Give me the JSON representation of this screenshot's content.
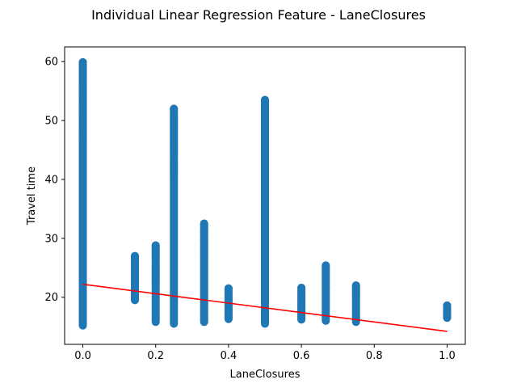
{
  "chart_data": {
    "type": "scatter",
    "title": "Individual Linear Regression Feature - LaneClosures",
    "xlabel": "LaneClosures",
    "ylabel": "Travel time",
    "xlim": [
      -0.05,
      1.05
    ],
    "ylim": [
      12,
      62.5
    ],
    "xticks": [
      0.0,
      0.2,
      0.4,
      0.6,
      0.8,
      1.0
    ],
    "xtick_labels": [
      "0.0",
      "0.2",
      "0.4",
      "0.6",
      "0.8",
      "1.0"
    ],
    "yticks": [
      20,
      30,
      40,
      50,
      60
    ],
    "ytick_labels": [
      "20",
      "30",
      "40",
      "50",
      "60"
    ],
    "grid": false,
    "colors": {
      "points": "#1f77b4",
      "regression": "#ff0000",
      "axes": "#000000"
    },
    "series": [
      {
        "type": "scatter",
        "columns": [
          {
            "x": 0.0,
            "y_min": 15.2,
            "y_max": 59.9
          },
          {
            "x": 0.143,
            "y_min": 19.5,
            "y_max": 27.0
          },
          {
            "x": 0.2,
            "y_min": 15.8,
            "y_max": 28.8
          },
          {
            "x": 0.25,
            "y_min": 15.5,
            "y_max": 52.0
          },
          {
            "x": 0.333,
            "y_min": 15.8,
            "y_max": 32.5
          },
          {
            "x": 0.4,
            "y_min": 16.3,
            "y_max": 21.5
          },
          {
            "x": 0.5,
            "y_min": 15.5,
            "y_max": 53.5
          },
          {
            "x": 0.6,
            "y_min": 16.2,
            "y_max": 21.6
          },
          {
            "x": 0.667,
            "y_min": 16.0,
            "y_max": 25.4
          },
          {
            "x": 0.75,
            "y_min": 15.8,
            "y_max": 22.0
          },
          {
            "x": 1.0,
            "y_min": 16.5,
            "y_max": 18.6
          }
        ],
        "points": [
          [
            0.0,
            59.9
          ],
          [
            0.0,
            58.5
          ],
          [
            0.0,
            57.3
          ],
          [
            0.0,
            55.8
          ],
          [
            0.0,
            54.2
          ],
          [
            0.0,
            52.6
          ],
          [
            0.0,
            51.0
          ],
          [
            0.0,
            49.5
          ],
          [
            0.0,
            48.2
          ],
          [
            0.0,
            46.7
          ],
          [
            0.143,
            27.0
          ],
          [
            0.143,
            26.2
          ],
          [
            0.143,
            25.5
          ],
          [
            0.143,
            24.3
          ],
          [
            0.143,
            22.8
          ],
          [
            0.143,
            22.0
          ],
          [
            0.143,
            21.3
          ],
          [
            0.143,
            20.6
          ],
          [
            0.143,
            20.0
          ],
          [
            0.2,
            28.8
          ],
          [
            0.2,
            28.0
          ],
          [
            0.2,
            27.0
          ],
          [
            0.2,
            25.3
          ],
          [
            0.2,
            24.0
          ],
          [
            0.2,
            23.2
          ],
          [
            0.25,
            52.0
          ],
          [
            0.25,
            50.3
          ],
          [
            0.25,
            49.2
          ],
          [
            0.25,
            48.5
          ],
          [
            0.25,
            47.6
          ],
          [
            0.25,
            46.4
          ],
          [
            0.25,
            45.5
          ],
          [
            0.25,
            44.8
          ],
          [
            0.25,
            42.9
          ],
          [
            0.25,
            41.0
          ],
          [
            0.333,
            32.5
          ],
          [
            0.333,
            31.2
          ],
          [
            0.333,
            29.6
          ],
          [
            0.333,
            28.4
          ],
          [
            0.333,
            27.6
          ],
          [
            0.4,
            21.5
          ],
          [
            0.4,
            19.5
          ],
          [
            0.4,
            18.9
          ],
          [
            0.4,
            17.8
          ],
          [
            0.4,
            17.2
          ],
          [
            0.4,
            16.6
          ],
          [
            0.5,
            53.5
          ],
          [
            0.5,
            52.8
          ],
          [
            0.5,
            52.0
          ],
          [
            0.5,
            50.8
          ],
          [
            0.5,
            49.5
          ],
          [
            0.5,
            47.8
          ],
          [
            0.5,
            46.5
          ],
          [
            0.5,
            44.5
          ],
          [
            0.5,
            43.2
          ],
          [
            0.5,
            41.8
          ],
          [
            0.6,
            21.6
          ],
          [
            0.6,
            19.9
          ],
          [
            0.6,
            18.6
          ],
          [
            0.6,
            17.8
          ],
          [
            0.6,
            17.0
          ],
          [
            0.6,
            16.4
          ],
          [
            0.667,
            25.4
          ],
          [
            0.667,
            24.8
          ],
          [
            0.667,
            23.9
          ],
          [
            0.667,
            22.8
          ],
          [
            0.667,
            21.5
          ],
          [
            0.75,
            22.0
          ],
          [
            0.75,
            21.2
          ],
          [
            0.75,
            20.5
          ],
          [
            1.0,
            18.6
          ],
          [
            1.0,
            17.8
          ],
          [
            1.0,
            17.2
          ],
          [
            1.0,
            16.7
          ]
        ]
      },
      {
        "type": "line",
        "x": [
          0.0,
          1.0
        ],
        "y": [
          22.2,
          14.2
        ]
      }
    ]
  }
}
